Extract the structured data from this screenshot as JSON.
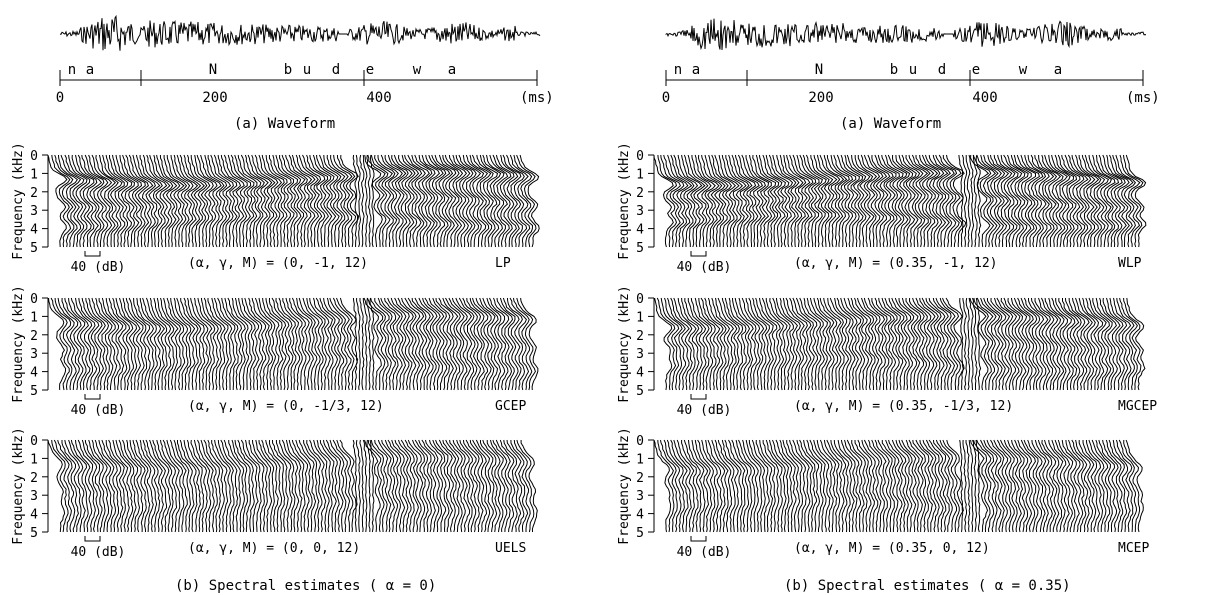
{
  "figure": {
    "columns": [
      {
        "id": "left",
        "waveform": {
          "segments": [
            "n",
            "a",
            "N",
            "b",
            "u",
            "d",
            "e",
            "w",
            "a"
          ],
          "time_ticks": [
            "0",
            "200",
            "400"
          ],
          "time_unit": "(ms)",
          "caption": "(a)  Waveform"
        },
        "panels": [
          {
            "params": "(α,  γ,  M)  =  (0,  -1,  12)",
            "method": "LP",
            "emphasis": 0.7
          },
          {
            "params": "(α,  γ,  M)  =  (0,  -1/3,  12)",
            "method": "GCEP",
            "emphasis": 0.45
          },
          {
            "params": "(α,  γ,  M)  =  (0,  0,  12)",
            "method": "UELS",
            "emphasis": 0.25
          }
        ],
        "caption": "(b)  Spectral estimates  ( α  =  0)"
      },
      {
        "id": "right",
        "waveform": {
          "segments": [
            "n",
            "a",
            "N",
            "b",
            "u",
            "d",
            "e",
            "w",
            "a"
          ],
          "time_ticks": [
            "0",
            "200",
            "400"
          ],
          "time_unit": "(ms)",
          "caption": "(a)  Waveform"
        },
        "panels": [
          {
            "params": "(α,  γ,  M)  =  (0.35,  -1,  12)",
            "method": "WLP",
            "emphasis": 0.75
          },
          {
            "params": "(α,  γ,  M)  =  (0.35,  -1/3,  12)",
            "method": "MGCEP",
            "emphasis": 0.5
          },
          {
            "params": "(α,  γ,  M)  =  (0.35,  0,  12)",
            "method": "MCEP",
            "emphasis": 0.3
          }
        ],
        "caption": "(b)  Spectral estimates  ( α  =  0.35)"
      }
    ],
    "ylabel": "Frequency (kHz)",
    "yticks": [
      "0",
      "1",
      "2",
      "3",
      "4",
      "5"
    ],
    "scale_label": "40 (dB)"
  }
}
